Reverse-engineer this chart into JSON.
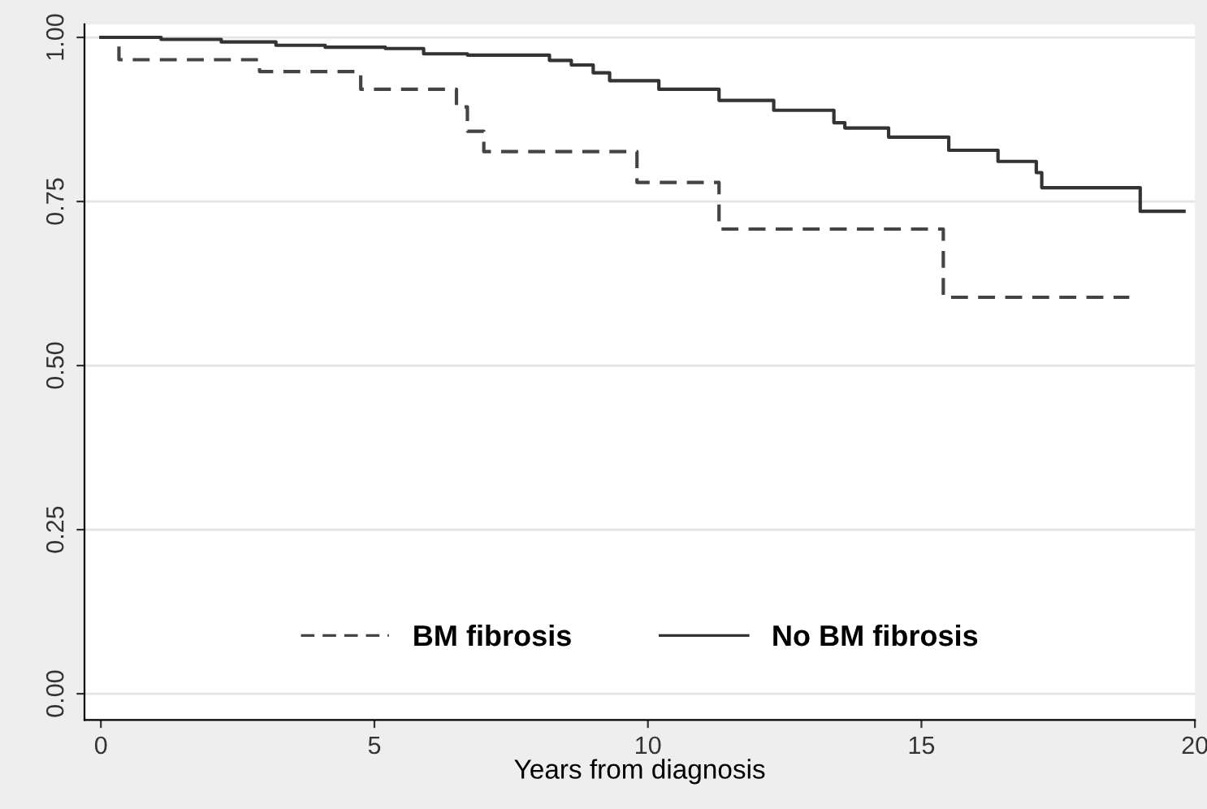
{
  "chart_data": {
    "type": "step",
    "xlabel": "Years from diagnosis",
    "xlim": [
      -0.3,
      20
    ],
    "ylim": [
      -0.04,
      1.02
    ],
    "xticks": [
      0,
      5,
      10,
      15,
      20
    ],
    "yticks": [
      {
        "value": 0,
        "label": "0.00"
      },
      {
        "value": 0.25,
        "label": "0.25"
      },
      {
        "value": 0.5,
        "label": "0.50"
      },
      {
        "value": 0.75,
        "label": "0.75"
      },
      {
        "value": 1,
        "label": "1.00"
      }
    ],
    "grid": "y",
    "legend": "bottom",
    "series": [
      {
        "name": "BM fibrosis",
        "color": "#444444",
        "line_style": "dashed",
        "x": [
          0,
          0.33,
          2.9,
          4.75,
          6.5,
          6.7,
          7.0,
          9.8,
          11.3,
          15.4,
          18.8
        ],
        "values": [
          1.0,
          0.966,
          0.948,
          0.921,
          0.894,
          0.857,
          0.826,
          0.779,
          0.708,
          0.604,
          0.604
        ]
      },
      {
        "name": "No BM fibrosis",
        "color": "#333333",
        "line_style": "solid",
        "x": [
          0,
          1.1,
          2.2,
          3.2,
          4.1,
          5.2,
          5.9,
          6.7,
          8.2,
          8.6,
          9.0,
          9.3,
          10.2,
          11.3,
          12.3,
          13.4,
          13.6,
          14.4,
          15.5,
          16.4,
          17.1,
          17.2,
          19.0,
          19.8
        ],
        "values": [
          1.0,
          0.997,
          0.993,
          0.988,
          0.985,
          0.983,
          0.975,
          0.973,
          0.965,
          0.958,
          0.946,
          0.934,
          0.921,
          0.904,
          0.889,
          0.87,
          0.862,
          0.848,
          0.828,
          0.811,
          0.794,
          0.771,
          0.735,
          0.735
        ]
      }
    ]
  }
}
